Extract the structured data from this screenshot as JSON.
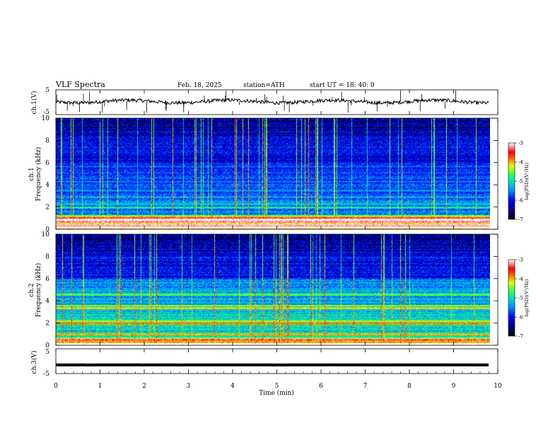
{
  "header": {
    "title": "VLF  Spectra",
    "date": "Feb. 18, 2025",
    "station": "station=ATH",
    "start": "start  UT  =   18: 40: 0"
  },
  "chart_data": [
    {
      "type": "line",
      "panel": "ch1-waveform",
      "ylabel": "ch.1(V)",
      "ylim": [
        -5,
        5
      ],
      "y_ticks": [
        "5",
        "-5"
      ],
      "xlim": [
        0,
        10
      ],
      "x_end": 9.8,
      "baseline": 0.3,
      "trace_color": "#000000"
    },
    {
      "type": "heatmap",
      "panel": "ch1-spectrogram",
      "ylabel_top": "ch.1",
      "ylabel": "Frequency (kHz)",
      "ylim": [
        0,
        10
      ],
      "y_ticks": [
        "0",
        "2",
        "4",
        "6",
        "8",
        "10"
      ],
      "xlim": [
        0,
        10
      ],
      "x_end": 9.8,
      "colorbar": {
        "label": "log(PSD)(V²/Hz)",
        "ticks": [
          "-3",
          "-4",
          "-5",
          "-6",
          "-7"
        ],
        "range": [
          -7,
          -3
        ]
      },
      "bands_khz": [
        {
          "f": 0.2,
          "level": -2.8
        },
        {
          "f": 0.45,
          "level": -3.1
        },
        {
          "f": 0.7,
          "level": -3.2
        },
        {
          "f": 0.9,
          "level": -3.0
        },
        {
          "f": 1.05,
          "level": -3.4
        },
        {
          "f": 2.0,
          "level": -4.9
        },
        {
          "f": 2.3,
          "level": -5.2
        },
        {
          "f": 3.5,
          "level": -5.5
        },
        {
          "f": 4.3,
          "level": -5.6
        }
      ]
    },
    {
      "type": "heatmap",
      "panel": "ch2-spectrogram",
      "ylabel_top": "ch.2",
      "ylabel": "Frequency (kHz)",
      "ylim": [
        0,
        10
      ],
      "y_ticks": [
        "0",
        "2",
        "4",
        "6",
        "8",
        "10"
      ],
      "xlim": [
        0,
        10
      ],
      "x_end": 9.8,
      "colorbar": {
        "label": "log(PSD)(V²/Hz)",
        "ticks": [
          "-3",
          "-4",
          "-5",
          "-6",
          "-7"
        ],
        "range": [
          -7,
          -3
        ]
      },
      "bands_khz": [
        {
          "f": 0.15,
          "level": -2.9
        },
        {
          "f": 0.5,
          "level": -3.3
        },
        {
          "f": 1.0,
          "level": -4.0
        },
        {
          "f": 2.0,
          "level": -3.9
        },
        {
          "f": 2.2,
          "level": -4.2
        },
        {
          "f": 3.4,
          "level": -4.1
        },
        {
          "f": 3.6,
          "level": -4.4
        },
        {
          "f": 4.6,
          "level": -4.6
        }
      ]
    },
    {
      "type": "line",
      "panel": "ch3-waveform",
      "ylabel": "ch.3(V)",
      "ylim": [
        -5,
        5
      ],
      "y_ticks": [
        "5",
        "-5"
      ],
      "xlim": [
        0,
        10
      ],
      "x_end": 9.8,
      "baseline": -1.5,
      "trace_color": "#000000",
      "xlabel": "Time  (min)",
      "x_ticks": [
        "0",
        "1",
        "2",
        "3",
        "4",
        "5",
        "6",
        "7",
        "8",
        "9",
        "10"
      ]
    }
  ]
}
